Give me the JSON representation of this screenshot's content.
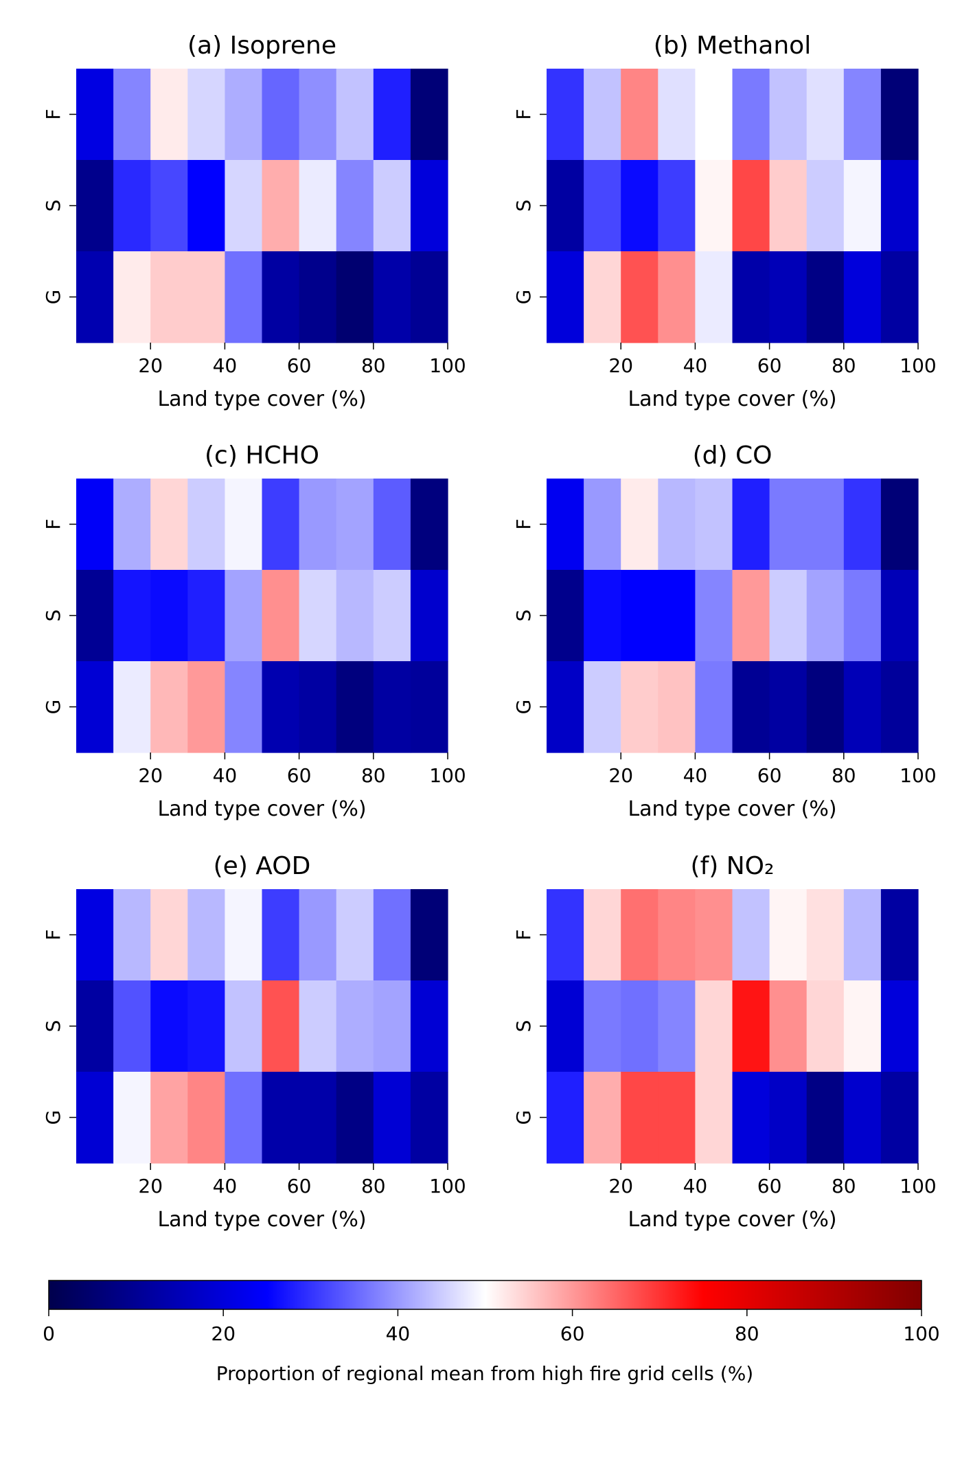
{
  "chart_data": [
    {
      "type": "heatmap",
      "title": "(a) Isoprene",
      "xlabel": "Land type cover (%)",
      "ylabel": "",
      "rows": [
        "F",
        "S",
        "G"
      ],
      "x_bin_edges": [
        0,
        10,
        20,
        30,
        40,
        50,
        60,
        70,
        80,
        90,
        100
      ],
      "xticks": [
        "20",
        "40",
        "60",
        "80",
        "100"
      ],
      "values": [
        [
          21,
          38,
          52,
          46,
          42,
          35,
          39,
          44,
          28,
          6
        ],
        [
          9,
          29,
          32,
          25,
          46,
          58,
          48,
          38,
          45,
          20
        ],
        [
          14,
          52,
          55,
          55,
          36,
          12,
          9,
          5,
          13,
          10
        ]
      ]
    },
    {
      "type": "heatmap",
      "title": "(b) Methanol",
      "xlabel": "Land type cover (%)",
      "ylabel": "",
      "rows": [
        "F",
        "S",
        "G"
      ],
      "x_bin_edges": [
        0,
        10,
        20,
        30,
        40,
        50,
        60,
        70,
        80,
        90,
        100
      ],
      "xticks": [
        "20",
        "40",
        "60",
        "80",
        "100"
      ],
      "values": [
        [
          30,
          44,
          62,
          47,
          50,
          37,
          44,
          47,
          38,
          6
        ],
        [
          12,
          32,
          26,
          31,
          51,
          68,
          55,
          45,
          49,
          18
        ],
        [
          20,
          54,
          67,
          61,
          48,
          13,
          15,
          8,
          20,
          12
        ]
      ]
    },
    {
      "type": "heatmap",
      "title": "(c) HCHO",
      "xlabel": "Land type cover (%)",
      "ylabel": "",
      "rows": [
        "F",
        "S",
        "G"
      ],
      "x_bin_edges": [
        0,
        10,
        20,
        30,
        40,
        50,
        60,
        70,
        80,
        90,
        100
      ],
      "xticks": [
        "20",
        "40",
        "60",
        "80",
        "100"
      ],
      "values": [
        [
          24,
          42,
          54,
          45,
          49,
          31,
          40,
          41,
          34,
          7
        ],
        [
          10,
          27,
          26,
          28,
          41,
          61,
          46,
          43,
          45,
          18
        ],
        [
          19,
          48,
          57,
          60,
          38,
          14,
          12,
          7,
          12,
          11
        ]
      ]
    },
    {
      "type": "heatmap",
      "title": "(d) CO",
      "xlabel": "Land type cover (%)",
      "ylabel": "",
      "rows": [
        "F",
        "S",
        "G"
      ],
      "x_bin_edges": [
        0,
        10,
        20,
        30,
        40,
        50,
        60,
        70,
        80,
        90,
        100
      ],
      "xticks": [
        "20",
        "40",
        "60",
        "80",
        "100"
      ],
      "values": [
        [
          23,
          40,
          52,
          43,
          44,
          28,
          37,
          37,
          30,
          6
        ],
        [
          9,
          26,
          25,
          25,
          38,
          60,
          45,
          41,
          37,
          15
        ],
        [
          17,
          45,
          55,
          56,
          37,
          10,
          12,
          7,
          15,
          11
        ]
      ]
    },
    {
      "type": "heatmap",
      "title": "(e) AOD",
      "xlabel": "Land type cover (%)",
      "ylabel": "",
      "rows": [
        "F",
        "S",
        "G"
      ],
      "x_bin_edges": [
        0,
        10,
        20,
        30,
        40,
        50,
        60,
        70,
        80,
        90,
        100
      ],
      "xticks": [
        "20",
        "40",
        "60",
        "80",
        "100"
      ],
      "values": [
        [
          21,
          43,
          54,
          43,
          49,
          31,
          40,
          45,
          36,
          6
        ],
        [
          12,
          33,
          26,
          27,
          44,
          67,
          45,
          42,
          41,
          19
        ],
        [
          19,
          49,
          59,
          62,
          36,
          13,
          13,
          8,
          19,
          12
        ]
      ]
    },
    {
      "type": "heatmap",
      "title": "(f) NO₂",
      "xlabel": "Land type cover (%)",
      "ylabel": "",
      "rows": [
        "F",
        "S",
        "G"
      ],
      "x_bin_edges": [
        0,
        10,
        20,
        30,
        40,
        50,
        60,
        70,
        80,
        90,
        100
      ],
      "xticks": [
        "20",
        "40",
        "60",
        "80",
        "100"
      ],
      "values": [
        [
          30,
          54,
          64,
          62,
          61,
          44,
          51,
          53,
          43,
          12
        ],
        [
          19,
          37,
          36,
          38,
          54,
          73,
          61,
          54,
          51,
          20
        ],
        [
          28,
          58,
          68,
          68,
          54,
          20,
          17,
          8,
          18,
          12
        ]
      ]
    }
  ],
  "colorbar": {
    "label": "Proportion of regional mean from high fire grid cells (%)",
    "ticks": [
      "0",
      "20",
      "40",
      "60",
      "80",
      "100"
    ],
    "range": [
      0,
      100
    ],
    "colormap": "seismic",
    "stops": [
      "#00004c",
      "#0000ff",
      "#ffffff",
      "#ff0000",
      "#800000"
    ]
  }
}
